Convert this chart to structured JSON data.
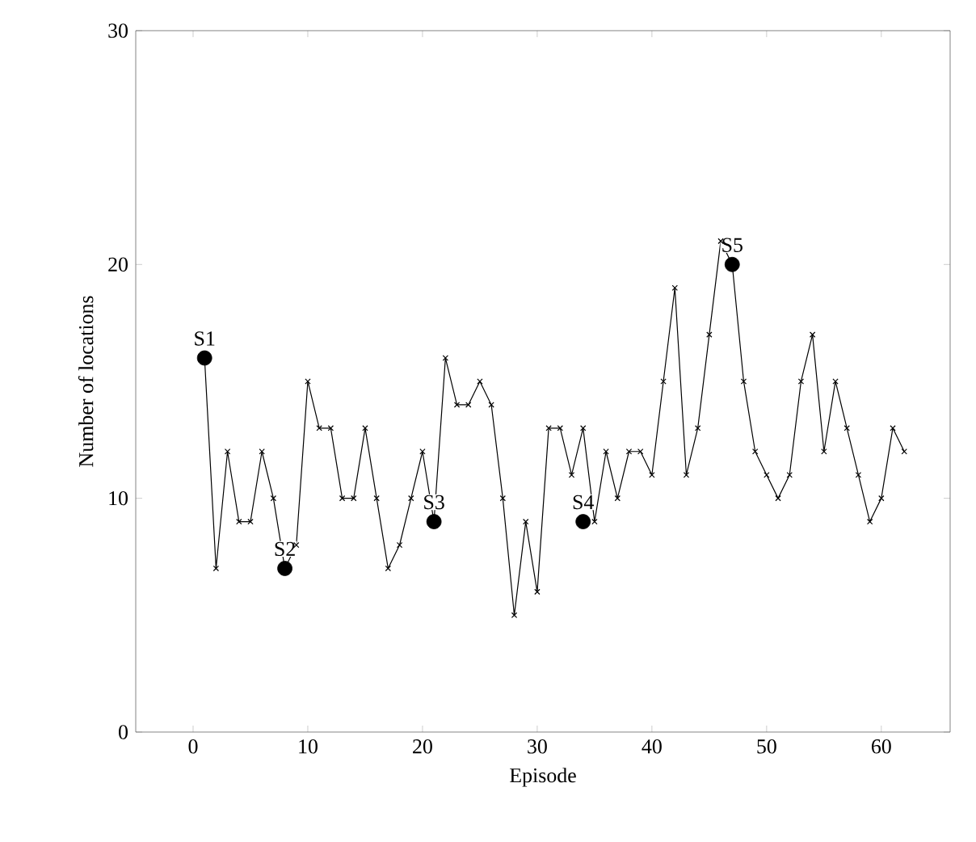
{
  "chart_data": {
    "type": "line",
    "xlabel": "Episode",
    "ylabel": "Number of locations",
    "xlim": [
      -5,
      66
    ],
    "ylim": [
      0,
      30
    ],
    "xticks": [
      0,
      10,
      20,
      30,
      40,
      50,
      60
    ],
    "yticks": [
      0,
      10,
      20,
      30
    ],
    "grid": false,
    "series": [
      {
        "color": "#000000",
        "marker": "cross",
        "x": [
          1,
          2,
          3,
          4,
          5,
          6,
          7,
          8,
          9,
          10,
          11,
          12,
          13,
          14,
          15,
          16,
          17,
          18,
          19,
          20,
          21,
          22,
          23,
          24,
          25,
          26,
          27,
          28,
          29,
          30,
          31,
          32,
          33,
          34,
          35,
          36,
          37,
          38,
          39,
          40,
          41,
          42,
          43,
          44,
          45,
          46,
          47,
          48,
          49,
          50,
          51,
          52,
          53,
          54,
          55,
          56,
          57,
          58,
          59,
          60,
          61,
          62
        ],
        "values": [
          16,
          7,
          12,
          9,
          9,
          12,
          10,
          7,
          8,
          15,
          13,
          13,
          10,
          10,
          13,
          10,
          7,
          8,
          10,
          12,
          9,
          16,
          14,
          14,
          15,
          14,
          10,
          5,
          9,
          6,
          13,
          13,
          11,
          13,
          9,
          12,
          10,
          12,
          12,
          11,
          15,
          19,
          11,
          13,
          17,
          21,
          20,
          15,
          12,
          11,
          10,
          11,
          15,
          17,
          12,
          15,
          13,
          11,
          9,
          10,
          13,
          12
        ]
      },
      {
        "type": "scatter",
        "color": "#000000",
        "marker": "circle",
        "x": [
          1,
          8,
          21,
          34,
          47
        ],
        "values": [
          16,
          7,
          9,
          9,
          20
        ]
      }
    ],
    "annotations": [
      {
        "text": "S1",
        "x": 1,
        "y": 16
      },
      {
        "text": "S2",
        "x": 8,
        "y": 7
      },
      {
        "text": "S3",
        "x": 21,
        "y": 9
      },
      {
        "text": "S4",
        "x": 34,
        "y": 9
      },
      {
        "text": "S5",
        "x": 47,
        "y": 20
      }
    ]
  }
}
